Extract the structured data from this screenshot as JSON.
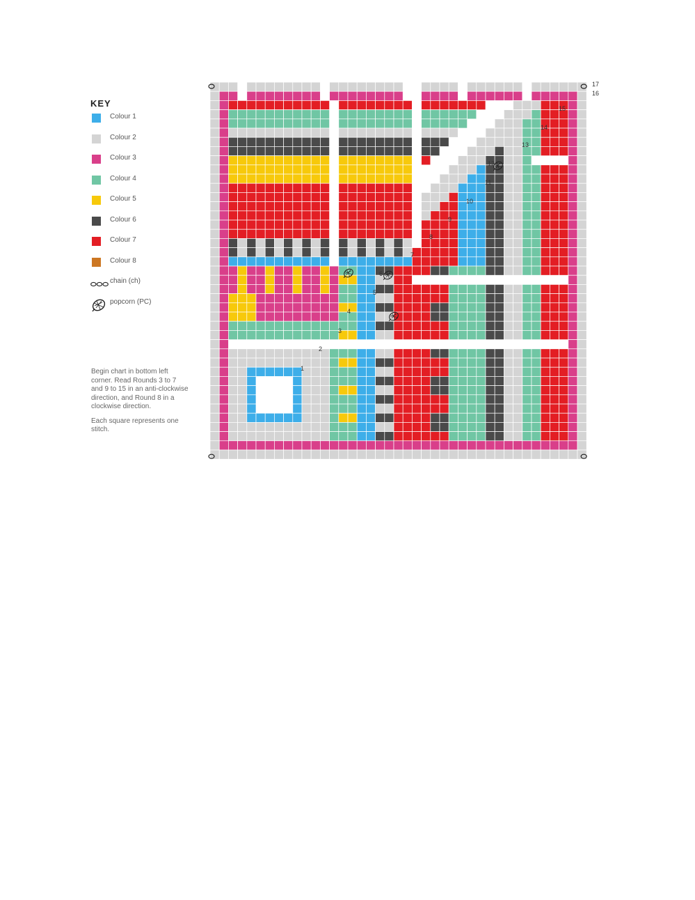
{
  "key": {
    "title": "KEY",
    "colours": [
      {
        "label": "Colour 1",
        "color": "#3daee9"
      },
      {
        "label": "Colour 2",
        "color": "#d4d4d4"
      },
      {
        "label": "Colour 3",
        "color": "#d93f8a"
      },
      {
        "label": "Colour 4",
        "color": "#70c6a4"
      },
      {
        "label": "Colour 5",
        "color": "#f7c90b"
      },
      {
        "label": "Colour 6",
        "color": "#4a4a4a"
      },
      {
        "label": "Colour 7",
        "color": "#e31e24"
      },
      {
        "label": "Colour 8",
        "color": "#cc7722"
      }
    ],
    "symbols": [
      {
        "label": "chain (ch)",
        "icon": "chain-icon"
      },
      {
        "label": "popcorn (PC)",
        "icon": "popcorn-icon"
      }
    ]
  },
  "instructions": {
    "paragraph1": "Begin chart in bottom left corner. Read Rounds 3 to 7 and 9 to 15 in an anti-clockwise direction, and Round 8 in a clockwise direction.",
    "paragraph2": "Each square represents one stitch."
  },
  "chart": {
    "round_labels": [
      "1",
      "2",
      "3",
      "4",
      "5",
      "6",
      "7",
      "8",
      "9",
      "10",
      "11",
      "12",
      "13",
      "14",
      "15",
      "16",
      "17"
    ]
  }
}
